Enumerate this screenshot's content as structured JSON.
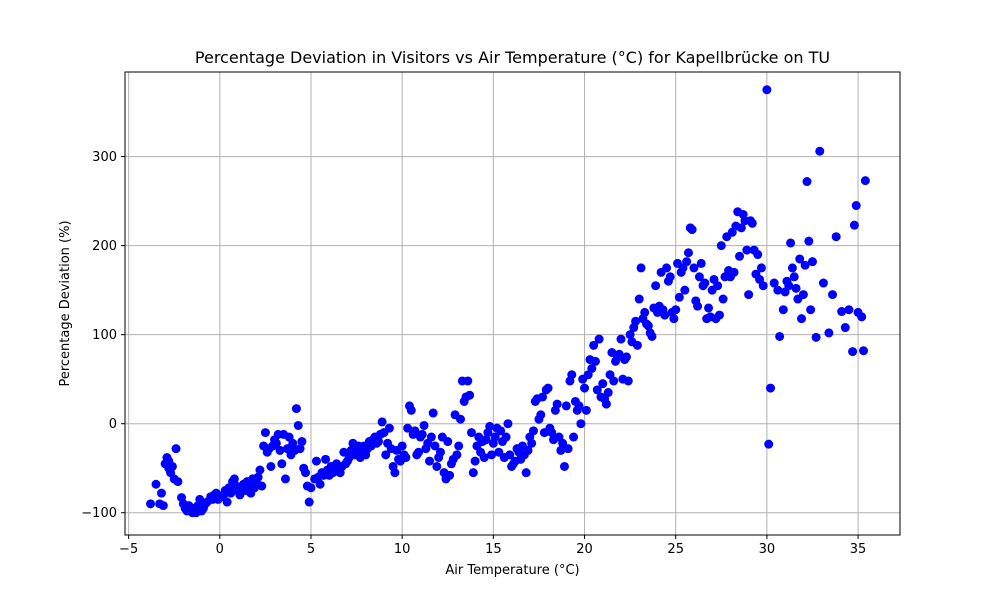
{
  "chart_data": {
    "type": "scatter",
    "title": "Percentage Deviation in Visitors vs Air Temperature (°C) for Kapellbrücke on TU",
    "xlabel": "Air Temperature (°C)",
    "ylabel": "Percentage Deviation (%)",
    "xlim": [
      -5.2,
      37.3
    ],
    "ylim": [
      -125,
      395
    ],
    "xticks": [
      -5,
      0,
      5,
      10,
      15,
      20,
      25,
      30,
      35
    ],
    "yticks": [
      -100,
      0,
      100,
      200,
      300
    ],
    "xtick_labels": [
      "−5",
      "0",
      "5",
      "10",
      "15",
      "20",
      "25",
      "30",
      "35"
    ],
    "ytick_labels": [
      "−100",
      "0",
      "100",
      "200",
      "300"
    ],
    "grid": true,
    "color": "#0000ff",
    "points": [
      [
        -3.8,
        -90
      ],
      [
        -3.5,
        -68
      ],
      [
        -3.3,
        -90
      ],
      [
        -3.2,
        -78
      ],
      [
        -3.1,
        -92
      ],
      [
        -3.0,
        -45
      ],
      [
        -2.9,
        -38
      ],
      [
        -2.8,
        -42
      ],
      [
        -2.8,
        -50
      ],
      [
        -2.7,
        -55
      ],
      [
        -2.6,
        -48
      ],
      [
        -2.5,
        -62
      ],
      [
        -2.4,
        -28
      ],
      [
        -2.3,
        -65
      ],
      [
        -2.1,
        -83
      ],
      [
        -2.0,
        -90
      ],
      [
        -1.9,
        -95
      ],
      [
        -1.8,
        -98
      ],
      [
        -1.7,
        -92
      ],
      [
        -1.6,
        -96
      ],
      [
        -1.5,
        -100
      ],
      [
        -1.4,
        -95
      ],
      [
        -1.3,
        -100
      ],
      [
        -1.2,
        -92
      ],
      [
        -1.1,
        -85
      ],
      [
        -1.0,
        -98
      ],
      [
        -0.9,
        -95
      ],
      [
        -0.8,
        -90
      ],
      [
        -0.7,
        -88
      ],
      [
        -0.5,
        -82
      ],
      [
        -0.4,
        -85
      ],
      [
        -0.3,
        -80
      ],
      [
        -0.2,
        -78
      ],
      [
        -0.1,
        -85
      ],
      [
        0.1,
        -82
      ],
      [
        0.2,
        -80
      ],
      [
        0.3,
        -75
      ],
      [
        0.4,
        -88
      ],
      [
        0.5,
        -72
      ],
      [
        0.6,
        -78
      ],
      [
        0.7,
        -65
      ],
      [
        0.8,
        -62
      ],
      [
        0.9,
        -70
      ],
      [
        1.0,
        -75
      ],
      [
        1.1,
        -80
      ],
      [
        1.2,
        -72
      ],
      [
        1.3,
        -68
      ],
      [
        1.4,
        -75
      ],
      [
        1.5,
        -65
      ],
      [
        1.6,
        -70
      ],
      [
        1.7,
        -78
      ],
      [
        1.8,
        -62
      ],
      [
        1.9,
        -72
      ],
      [
        2.0,
        -65
      ],
      [
        2.1,
        -60
      ],
      [
        2.2,
        -52
      ],
      [
        2.3,
        -70
      ],
      [
        2.4,
        -25
      ],
      [
        2.5,
        -10
      ],
      [
        2.6,
        -32
      ],
      [
        2.7,
        -28
      ],
      [
        2.8,
        -48
      ],
      [
        2.9,
        -25
      ],
      [
        3.0,
        -18
      ],
      [
        3.1,
        -22
      ],
      [
        3.2,
        -12
      ],
      [
        3.3,
        -30
      ],
      [
        3.4,
        -45
      ],
      [
        3.5,
        -12
      ],
      [
        3.6,
        -62
      ],
      [
        3.7,
        -28
      ],
      [
        3.8,
        -15
      ],
      [
        3.9,
        -35
      ],
      [
        4.0,
        -22
      ],
      [
        4.1,
        -30
      ],
      [
        4.2,
        17
      ],
      [
        4.3,
        -2
      ],
      [
        4.4,
        -28
      ],
      [
        4.5,
        -20
      ],
      [
        4.6,
        -50
      ],
      [
        4.7,
        -55
      ],
      [
        4.8,
        -70
      ],
      [
        4.9,
        -88
      ],
      [
        5.0,
        -72
      ],
      [
        5.2,
        -62
      ],
      [
        5.3,
        -42
      ],
      [
        5.4,
        -60
      ],
      [
        5.5,
        -68
      ],
      [
        5.6,
        -55
      ],
      [
        5.7,
        -58
      ],
      [
        5.8,
        -40
      ],
      [
        5.9,
        -52
      ],
      [
        6.0,
        -58
      ],
      [
        6.1,
        -48
      ],
      [
        6.2,
        -55
      ],
      [
        6.3,
        -50
      ],
      [
        6.4,
        -45
      ],
      [
        6.5,
        -52
      ],
      [
        6.6,
        -55
      ],
      [
        6.7,
        -48
      ],
      [
        6.8,
        -32
      ],
      [
        6.9,
        -45
      ],
      [
        7.0,
        -42
      ],
      [
        7.1,
        -38
      ],
      [
        7.2,
        -30
      ],
      [
        7.3,
        -22
      ],
      [
        7.4,
        -35
      ],
      [
        7.5,
        -28
      ],
      [
        7.6,
        -25
      ],
      [
        7.7,
        -38
      ],
      [
        7.8,
        -30
      ],
      [
        7.9,
        -25
      ],
      [
        8.0,
        -35
      ],
      [
        8.1,
        -28
      ],
      [
        8.2,
        -20
      ],
      [
        8.3,
        -25
      ],
      [
        8.4,
        -18
      ],
      [
        8.5,
        -15
      ],
      [
        8.6,
        -22
      ],
      [
        8.7,
        -20
      ],
      [
        8.8,
        -12
      ],
      [
        8.9,
        2
      ],
      [
        9.0,
        -10
      ],
      [
        9.1,
        -35
      ],
      [
        9.2,
        -22
      ],
      [
        9.3,
        -5
      ],
      [
        9.4,
        -28
      ],
      [
        9.5,
        -48
      ],
      [
        9.6,
        -55
      ],
      [
        9.7,
        -30
      ],
      [
        9.8,
        -40
      ],
      [
        9.9,
        -42
      ],
      [
        10.0,
        -25
      ],
      [
        10.1,
        -35
      ],
      [
        10.2,
        -38
      ],
      [
        10.3,
        -5
      ],
      [
        10.4,
        20
      ],
      [
        10.5,
        15
      ],
      [
        10.6,
        -12
      ],
      [
        10.7,
        -8
      ],
      [
        10.8,
        -35
      ],
      [
        10.9,
        -32
      ],
      [
        11.0,
        -15
      ],
      [
        11.1,
        -12
      ],
      [
        11.2,
        -2
      ],
      [
        11.3,
        -28
      ],
      [
        11.4,
        -22
      ],
      [
        11.5,
        -42
      ],
      [
        11.6,
        -15
      ],
      [
        11.7,
        12
      ],
      [
        11.8,
        -25
      ],
      [
        11.9,
        -48
      ],
      [
        12.0,
        -38
      ],
      [
        12.1,
        -32
      ],
      [
        12.2,
        -15
      ],
      [
        12.3,
        -55
      ],
      [
        12.4,
        -62
      ],
      [
        12.5,
        -20
      ],
      [
        12.6,
        -58
      ],
      [
        12.7,
        -45
      ],
      [
        12.8,
        -40
      ],
      [
        12.9,
        10
      ],
      [
        13.0,
        -35
      ],
      [
        13.1,
        -25
      ],
      [
        13.2,
        5
      ],
      [
        13.3,
        48
      ],
      [
        13.4,
        25
      ],
      [
        13.5,
        30
      ],
      [
        13.6,
        48
      ],
      [
        13.7,
        32
      ],
      [
        13.8,
        -10
      ],
      [
        13.9,
        -55
      ],
      [
        14.0,
        -42
      ],
      [
        14.1,
        -25
      ],
      [
        14.2,
        -15
      ],
      [
        14.3,
        -32
      ],
      [
        14.4,
        -20
      ],
      [
        14.5,
        -38
      ],
      [
        14.6,
        -18
      ],
      [
        14.7,
        -10
      ],
      [
        14.8,
        -3
      ],
      [
        14.9,
        -35
      ],
      [
        15.0,
        -22
      ],
      [
        15.1,
        -15
      ],
      [
        15.2,
        -5
      ],
      [
        15.3,
        -32
      ],
      [
        15.4,
        -8
      ],
      [
        15.5,
        -20
      ],
      [
        15.6,
        -38
      ],
      [
        15.7,
        -15
      ],
      [
        15.8,
        0
      ],
      [
        15.9,
        -35
      ],
      [
        16.0,
        -48
      ],
      [
        16.1,
        -45
      ],
      [
        16.2,
        -42
      ],
      [
        16.3,
        -28
      ],
      [
        16.4,
        -32
      ],
      [
        16.5,
        -40
      ],
      [
        16.6,
        -25
      ],
      [
        16.7,
        -35
      ],
      [
        16.8,
        -55
      ],
      [
        16.9,
        -30
      ],
      [
        17.0,
        -15
      ],
      [
        17.1,
        -22
      ],
      [
        17.2,
        -8
      ],
      [
        17.3,
        25
      ],
      [
        17.4,
        28
      ],
      [
        17.5,
        5
      ],
      [
        17.6,
        10
      ],
      [
        17.7,
        30
      ],
      [
        17.8,
        -10
      ],
      [
        17.9,
        38
      ],
      [
        18.0,
        40
      ],
      [
        18.1,
        -5
      ],
      [
        18.2,
        -10
      ],
      [
        18.3,
        -18
      ],
      [
        18.4,
        15
      ],
      [
        18.5,
        22
      ],
      [
        18.6,
        -15
      ],
      [
        18.7,
        -30
      ],
      [
        18.8,
        -22
      ],
      [
        18.9,
        -48
      ],
      [
        19.0,
        20
      ],
      [
        19.1,
        -28
      ],
      [
        19.2,
        48
      ],
      [
        19.3,
        55
      ],
      [
        19.4,
        -15
      ],
      [
        19.5,
        25
      ],
      [
        19.6,
        15
      ],
      [
        19.7,
        20
      ],
      [
        19.8,
        0
      ],
      [
        19.9,
        50
      ],
      [
        20.0,
        40
      ],
      [
        20.1,
        15
      ],
      [
        20.2,
        55
      ],
      [
        20.3,
        72
      ],
      [
        20.4,
        62
      ],
      [
        20.5,
        88
      ],
      [
        20.6,
        70
      ],
      [
        20.7,
        38
      ],
      [
        20.8,
        95
      ],
      [
        20.9,
        30
      ],
      [
        21.0,
        45
      ],
      [
        21.1,
        28
      ],
      [
        21.2,
        22
      ],
      [
        21.3,
        35
      ],
      [
        21.4,
        55
      ],
      [
        21.5,
        80
      ],
      [
        21.6,
        48
      ],
      [
        21.7,
        70
      ],
      [
        21.8,
        75
      ],
      [
        21.9,
        78
      ],
      [
        22.0,
        95
      ],
      [
        22.1,
        50
      ],
      [
        22.2,
        72
      ],
      [
        22.3,
        75
      ],
      [
        22.4,
        48
      ],
      [
        22.5,
        100
      ],
      [
        22.6,
        92
      ],
      [
        22.7,
        108
      ],
      [
        22.8,
        115
      ],
      [
        22.9,
        88
      ],
      [
        23.0,
        140
      ],
      [
        23.1,
        175
      ],
      [
        23.2,
        118
      ],
      [
        23.3,
        125
      ],
      [
        23.4,
        112
      ],
      [
        23.5,
        110
      ],
      [
        23.6,
        102
      ],
      [
        23.7,
        98
      ],
      [
        23.8,
        130
      ],
      [
        23.9,
        155
      ],
      [
        24.0,
        125
      ],
      [
        24.1,
        132
      ],
      [
        24.2,
        170
      ],
      [
        24.3,
        128
      ],
      [
        24.4,
        122
      ],
      [
        24.5,
        175
      ],
      [
        24.6,
        160
      ],
      [
        24.7,
        165
      ],
      [
        24.8,
        125
      ],
      [
        24.9,
        118
      ],
      [
        25.0,
        128
      ],
      [
        25.1,
        180
      ],
      [
        25.2,
        142
      ],
      [
        25.3,
        170
      ],
      [
        25.4,
        175
      ],
      [
        25.5,
        150
      ],
      [
        25.6,
        182
      ],
      [
        25.7,
        192
      ],
      [
        25.8,
        220
      ],
      [
        25.9,
        218
      ],
      [
        26.0,
        175
      ],
      [
        26.1,
        138
      ],
      [
        26.2,
        132
      ],
      [
        26.3,
        165
      ],
      [
        26.4,
        180
      ],
      [
        26.5,
        155
      ],
      [
        26.6,
        158
      ],
      [
        26.7,
        118
      ],
      [
        26.8,
        130
      ],
      [
        26.9,
        120
      ],
      [
        27.0,
        150
      ],
      [
        27.1,
        162
      ],
      [
        27.2,
        118
      ],
      [
        27.3,
        155
      ],
      [
        27.4,
        122
      ],
      [
        27.5,
        200
      ],
      [
        27.6,
        140
      ],
      [
        27.7,
        165
      ],
      [
        27.8,
        210
      ],
      [
        27.9,
        172
      ],
      [
        28.0,
        165
      ],
      [
        28.1,
        215
      ],
      [
        28.2,
        170
      ],
      [
        28.3,
        222
      ],
      [
        28.4,
        238
      ],
      [
        28.5,
        188
      ],
      [
        28.6,
        220
      ],
      [
        28.7,
        235
      ],
      [
        28.8,
        228
      ],
      [
        28.9,
        195
      ],
      [
        29.0,
        145
      ],
      [
        29.1,
        228
      ],
      [
        29.2,
        225
      ],
      [
        29.3,
        195
      ],
      [
        29.4,
        168
      ],
      [
        29.5,
        190
      ],
      [
        29.6,
        162
      ],
      [
        29.7,
        175
      ],
      [
        29.8,
        155
      ],
      [
        30.0,
        375
      ],
      [
        30.1,
        -23
      ],
      [
        30.2,
        40
      ],
      [
        30.4,
        158
      ],
      [
        30.6,
        150
      ],
      [
        30.7,
        98
      ],
      [
        30.9,
        128
      ],
      [
        31.0,
        148
      ],
      [
        31.1,
        160
      ],
      [
        31.2,
        155
      ],
      [
        31.3,
        203
      ],
      [
        31.4,
        175
      ],
      [
        31.5,
        165
      ],
      [
        31.6,
        152
      ],
      [
        31.7,
        140
      ],
      [
        31.8,
        185
      ],
      [
        31.9,
        118
      ],
      [
        32.0,
        145
      ],
      [
        32.1,
        178
      ],
      [
        32.2,
        272
      ],
      [
        32.3,
        205
      ],
      [
        32.4,
        128
      ],
      [
        32.5,
        182
      ],
      [
        32.7,
        97
      ],
      [
        32.9,
        306
      ],
      [
        33.1,
        158
      ],
      [
        33.4,
        102
      ],
      [
        33.6,
        145
      ],
      [
        33.8,
        210
      ],
      [
        34.1,
        126
      ],
      [
        34.3,
        108
      ],
      [
        34.5,
        128
      ],
      [
        34.7,
        81
      ],
      [
        34.8,
        223
      ],
      [
        34.9,
        245
      ],
      [
        35.0,
        125
      ],
      [
        35.2,
        120
      ],
      [
        35.3,
        82
      ],
      [
        35.4,
        273
      ]
    ]
  }
}
